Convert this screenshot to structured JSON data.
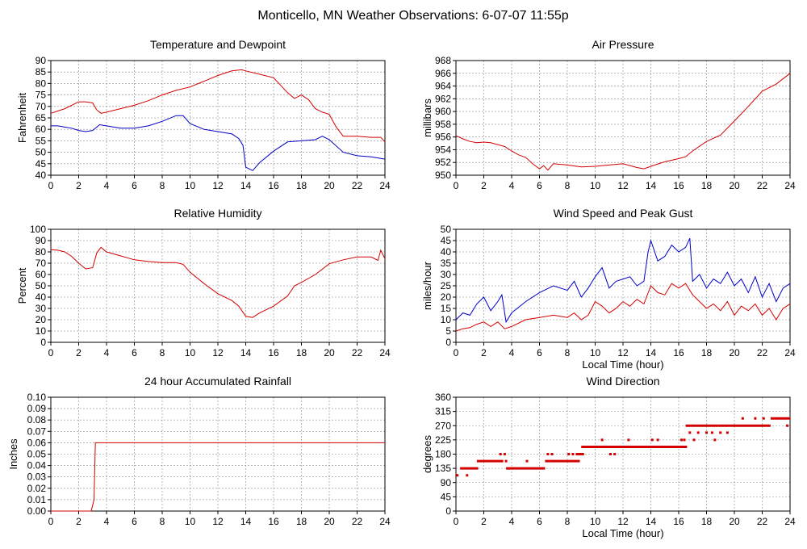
{
  "page": {
    "title": "Monticello, MN Weather Observations: 6-07-07 11:55p"
  },
  "colors": {
    "red": "#d40000",
    "blue": "#0000c8",
    "grid": "#888888"
  },
  "chart_data": [
    {
      "id": "temp",
      "type": "line",
      "title": "Temperature and Dewpoint",
      "xlabel": "",
      "ylabel": "Fahrenheit",
      "xlim": [
        0,
        24
      ],
      "ylim": [
        40,
        90
      ],
      "xticks": [
        0,
        2,
        4,
        6,
        8,
        10,
        12,
        14,
        16,
        18,
        20,
        22,
        24
      ],
      "yticks": [
        40,
        45,
        50,
        55,
        60,
        65,
        70,
        75,
        80,
        85,
        90
      ],
      "grid": true,
      "series": [
        {
          "color": "#d40000",
          "x": [
            0,
            0.5,
            1,
            1.5,
            2,
            2.5,
            3,
            3.3,
            3.6,
            4,
            5,
            6,
            7,
            8,
            9,
            10,
            11,
            12,
            13,
            13.7,
            14,
            15,
            16,
            17,
            17.5,
            18,
            18.5,
            19,
            19.5,
            20,
            20.5,
            21,
            22,
            23,
            23.7,
            24
          ],
          "y": [
            67,
            68,
            69,
            70.5,
            72,
            72,
            71.5,
            68.5,
            67,
            67.5,
            69,
            70.5,
            72.5,
            75,
            77,
            78.5,
            81,
            83.5,
            85.5,
            86,
            85.5,
            84,
            82.5,
            76,
            73.5,
            75,
            73,
            69,
            67.5,
            66.5,
            61,
            57,
            57,
            56.5,
            56.5,
            54.5
          ]
        },
        {
          "color": "#0000c8",
          "x": [
            0,
            0.5,
            1,
            1.5,
            2,
            2.5,
            3,
            3.5,
            4,
            5,
            6,
            7,
            8,
            9,
            9.5,
            10,
            11,
            12,
            13,
            13.5,
            13.8,
            14,
            14.5,
            15,
            16,
            17,
            18,
            19,
            19.5,
            20,
            21,
            22,
            23,
            24
          ],
          "y": [
            61.5,
            61.5,
            61,
            60.5,
            59.5,
            59,
            59.5,
            62,
            61.5,
            60.5,
            60.5,
            61.5,
            63.5,
            66,
            66,
            62.5,
            60,
            59,
            58,
            56,
            53,
            43.5,
            42,
            45.5,
            50.5,
            54.5,
            55,
            55.5,
            57,
            55.5,
            50,
            48.5,
            48,
            47
          ]
        }
      ]
    },
    {
      "id": "pressure",
      "type": "line",
      "title": "Air Pressure",
      "xlabel": "",
      "ylabel": "millibars",
      "xlim": [
        0,
        24
      ],
      "ylim": [
        950,
        968
      ],
      "xticks": [
        0,
        2,
        4,
        6,
        8,
        10,
        12,
        14,
        16,
        18,
        20,
        22,
        24
      ],
      "yticks": [
        950,
        952,
        954,
        956,
        958,
        960,
        962,
        964,
        966,
        968
      ],
      "grid": true,
      "series": [
        {
          "color": "#d40000",
          "x": [
            0,
            0.5,
            1,
            1.5,
            2,
            2.5,
            3,
            3.5,
            4,
            4.5,
            5,
            5.5,
            6,
            6.3,
            6.6,
            7,
            8,
            9,
            10,
            11,
            12,
            13,
            13.5,
            14,
            15,
            16,
            16.5,
            17,
            18,
            19,
            20,
            21,
            22,
            23,
            24
          ],
          "y": [
            956.2,
            955.7,
            955.3,
            955.1,
            955.2,
            955.1,
            954.8,
            954.5,
            953.8,
            953.2,
            952.8,
            951.8,
            951.0,
            951.5,
            950.8,
            951.8,
            951.6,
            951.3,
            951.4,
            951.6,
            951.8,
            951.2,
            951.0,
            951.4,
            952.1,
            952.6,
            952.9,
            953.8,
            955.3,
            956.3,
            958.5,
            960.8,
            963.2,
            964.3,
            966.0
          ]
        }
      ]
    },
    {
      "id": "humidity",
      "type": "line",
      "title": "Relative Humidity",
      "xlabel": "",
      "ylabel": "Percent",
      "xlim": [
        0,
        24
      ],
      "ylim": [
        0,
        100
      ],
      "xticks": [
        0,
        2,
        4,
        6,
        8,
        10,
        12,
        14,
        16,
        18,
        20,
        22,
        24
      ],
      "yticks": [
        0,
        10,
        20,
        30,
        40,
        50,
        60,
        70,
        80,
        90,
        100
      ],
      "grid": true,
      "series": [
        {
          "color": "#d40000",
          "x": [
            0,
            0.5,
            1,
            1.5,
            2,
            2.5,
            3,
            3.3,
            3.6,
            4,
            5,
            6,
            7,
            8,
            9,
            9.5,
            10,
            11,
            12,
            13,
            13.5,
            14,
            14.5,
            15,
            16,
            17,
            17.5,
            18,
            19,
            20,
            21,
            22,
            23,
            23.5,
            23.7,
            24
          ],
          "y": [
            82,
            81.5,
            80,
            76,
            70,
            65,
            66,
            79,
            84,
            80,
            76.5,
            73,
            71.5,
            70.5,
            70.5,
            69,
            62,
            52,
            43,
            37,
            32,
            23,
            22,
            26,
            32,
            41,
            50,
            53,
            60,
            69.5,
            73,
            75.5,
            75.5,
            72.5,
            81.5,
            74
          ]
        }
      ]
    },
    {
      "id": "wind",
      "type": "line",
      "title": "Wind Speed and Peak Gust",
      "xlabel": "Local Time (hour)",
      "ylabel": "miles/hour",
      "xlim": [
        0,
        24
      ],
      "ylim": [
        0,
        50
      ],
      "xticks": [
        0,
        2,
        4,
        6,
        8,
        10,
        12,
        14,
        16,
        18,
        20,
        22,
        24
      ],
      "yticks": [
        0,
        5,
        10,
        15,
        20,
        25,
        30,
        35,
        40,
        45,
        50
      ],
      "grid": true,
      "series": [
        {
          "color": "#0000c8",
          "x": [
            0,
            0.5,
            1,
            1.5,
            2,
            2.5,
            3,
            3.3,
            3.6,
            4,
            5,
            6,
            7,
            8,
            8.5,
            9,
            9.5,
            10,
            10.5,
            11,
            11.5,
            12,
            12.5,
            13,
            13.5,
            13.8,
            14,
            14.5,
            15,
            15.5,
            16,
            16.5,
            16.8,
            17,
            17.5,
            18,
            18.5,
            19,
            19.5,
            20,
            20.5,
            21,
            21.5,
            22,
            22.5,
            23,
            23.5,
            24
          ],
          "y": [
            10,
            13,
            12,
            17,
            20,
            14,
            18,
            21,
            9,
            13,
            18,
            22,
            25,
            23,
            27,
            20,
            24,
            29,
            33,
            24,
            27,
            28,
            29,
            25,
            27,
            40,
            45,
            36,
            38,
            43,
            40,
            42,
            46,
            27,
            30,
            24,
            28,
            26,
            31,
            25,
            28,
            22,
            29,
            20,
            26,
            18,
            24,
            26
          ]
        },
        {
          "color": "#d40000",
          "x": [
            0,
            0.5,
            1,
            1.5,
            2,
            2.5,
            3,
            3.5,
            4,
            5,
            6,
            7,
            8,
            8.5,
            9,
            9.5,
            10,
            10.5,
            11,
            11.5,
            12,
            12.5,
            13,
            13.5,
            14,
            14.5,
            15,
            15.5,
            16,
            16.5,
            17,
            17.5,
            18,
            18.5,
            19,
            19.5,
            20,
            20.5,
            21,
            21.5,
            22,
            22.5,
            23,
            23.5,
            24
          ],
          "y": [
            5,
            6,
            6.5,
            8,
            9,
            7,
            9,
            6,
            7,
            10,
            11,
            12,
            11,
            13,
            10,
            12,
            18,
            16,
            13,
            15,
            18,
            16,
            19,
            17,
            25,
            22,
            21,
            26,
            24,
            26,
            21,
            18,
            15,
            17,
            14,
            18,
            12,
            16,
            14,
            17,
            12,
            15,
            10,
            15,
            17
          ]
        }
      ]
    },
    {
      "id": "rain",
      "type": "line",
      "title": "24 hour Accumulated Rainfall",
      "xlabel": "",
      "ylabel": "Inches",
      "xlim": [
        0,
        24
      ],
      "ylim": [
        0,
        0.1
      ],
      "xticks": [
        0,
        2,
        4,
        6,
        8,
        10,
        12,
        14,
        16,
        18,
        20,
        22,
        24
      ],
      "yticks": [
        "0.00",
        "0.01",
        "0.02",
        "0.03",
        "0.04",
        "0.05",
        "0.06",
        "0.07",
        "0.08",
        "0.09",
        "0.10"
      ],
      "grid": true,
      "series": [
        {
          "color": "#d40000",
          "x": [
            0,
            2.9,
            3.1,
            3.2,
            24
          ],
          "y": [
            0,
            0,
            0.01,
            0.06,
            0.06
          ]
        }
      ]
    },
    {
      "id": "direction",
      "type": "scatter",
      "title": "Wind Direction",
      "xlabel": "Local Time (hour)",
      "ylabel": "degrees",
      "xlim": [
        0,
        24
      ],
      "ylim": [
        0,
        360
      ],
      "xticks": [
        0,
        2,
        4,
        6,
        8,
        10,
        12,
        14,
        16,
        18,
        20,
        22,
        24
      ],
      "yticks": [
        0,
        45,
        90,
        135,
        180,
        225,
        270,
        315,
        360
      ],
      "grid": true,
      "segments": [
        {
          "x0": 0.3,
          "x1": 1.6,
          "y": 135
        },
        {
          "x0": 1.5,
          "x1": 3.4,
          "y": 158
        },
        {
          "x0": 3.6,
          "x1": 6.4,
          "y": 135
        },
        {
          "x0": 6.4,
          "x1": 8.9,
          "y": 158
        },
        {
          "x0": 8.6,
          "x1": 9.2,
          "y": 180
        },
        {
          "x0": 9.0,
          "x1": 16.6,
          "y": 203
        },
        {
          "x0": 16.5,
          "x1": 18.8,
          "y": 270
        },
        {
          "x0": 18.8,
          "x1": 22.6,
          "y": 270
        },
        {
          "x0": 22.6,
          "x1": 24.0,
          "y": 293
        }
      ],
      "points": [
        {
          "x": 0.1,
          "y": 113
        },
        {
          "x": 0.8,
          "y": 113
        },
        {
          "x": 3.2,
          "y": 180
        },
        {
          "x": 3.5,
          "y": 180
        },
        {
          "x": 3.6,
          "y": 158
        },
        {
          "x": 5.1,
          "y": 158
        },
        {
          "x": 6.6,
          "y": 180
        },
        {
          "x": 6.9,
          "y": 180
        },
        {
          "x": 8.1,
          "y": 180
        },
        {
          "x": 8.4,
          "y": 180
        },
        {
          "x": 10.5,
          "y": 225
        },
        {
          "x": 11.1,
          "y": 180
        },
        {
          "x": 11.4,
          "y": 180
        },
        {
          "x": 12.4,
          "y": 225
        },
        {
          "x": 14.1,
          "y": 225
        },
        {
          "x": 14.5,
          "y": 225
        },
        {
          "x": 16.2,
          "y": 225
        },
        {
          "x": 16.4,
          "y": 225
        },
        {
          "x": 16.8,
          "y": 248
        },
        {
          "x": 17.1,
          "y": 225
        },
        {
          "x": 17.4,
          "y": 248
        },
        {
          "x": 18.0,
          "y": 248
        },
        {
          "x": 18.4,
          "y": 248
        },
        {
          "x": 18.6,
          "y": 225
        },
        {
          "x": 19.0,
          "y": 248
        },
        {
          "x": 19.5,
          "y": 248
        },
        {
          "x": 20.6,
          "y": 293
        },
        {
          "x": 21.5,
          "y": 293
        },
        {
          "x": 22.1,
          "y": 293
        },
        {
          "x": 23.8,
          "y": 270
        }
      ]
    }
  ]
}
